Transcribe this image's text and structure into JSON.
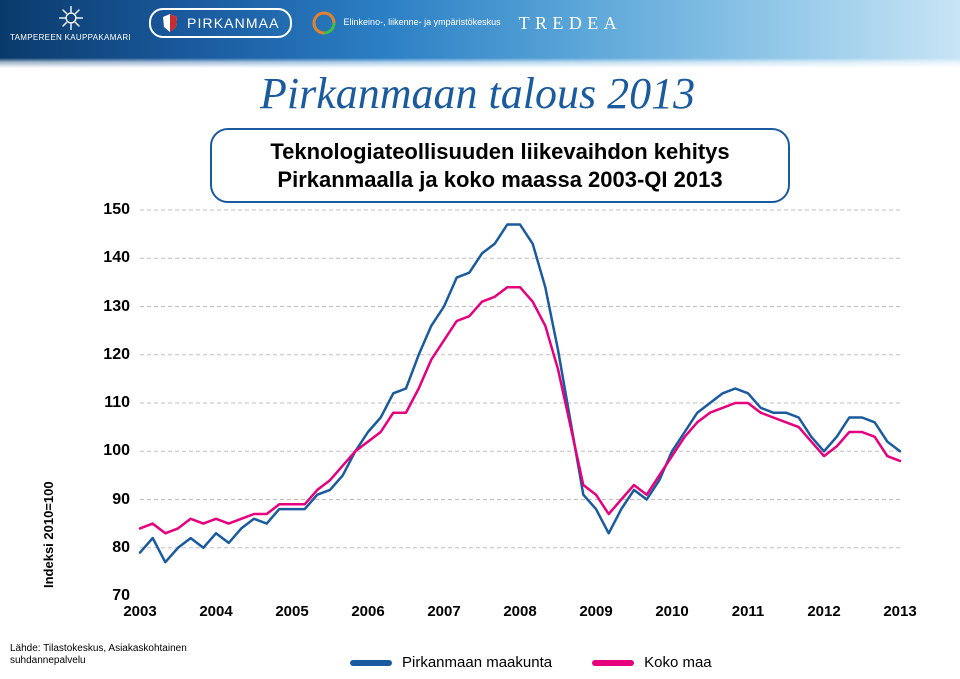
{
  "header": {
    "logos": {
      "kauppakamari_label": "TAMPEREEN\nKAUPPAKAMARI",
      "pirkanmaa_label": "PIRKANMAA",
      "ely_label": "Elinkeino-, liikenne- ja\nympäristökeskus",
      "tredea_label": "TREDEA"
    }
  },
  "title": "Pirkanmaan talous 2013",
  "subtitle": "Teknologiateollisuuden liikevaihdon kehitys Pirkanmaalla ja koko maassa 2003-QI 2013",
  "chart": {
    "type": "line",
    "y_axis_label": "Indeksi 2010=100",
    "ylim": [
      70,
      150
    ],
    "ytick_step": 10,
    "yticks": [
      70,
      80,
      90,
      100,
      110,
      120,
      130,
      140,
      150
    ],
    "xticks": [
      "2003",
      "2004",
      "2005",
      "2006",
      "2007",
      "2008",
      "2009",
      "2010",
      "2011",
      "2012",
      "2013"
    ],
    "grid_color": "#bfbfbf",
    "grid_dash": "4 3",
    "grid_width": 1,
    "background_color": "#ffffff",
    "line_width": 2.5,
    "series": {
      "pirkanmaa": {
        "label": "Pirkanmaan maakunta",
        "color": "#1a5a9e",
        "data": [
          79,
          82,
          77,
          80,
          82,
          80,
          83,
          81,
          84,
          86,
          85,
          88,
          88,
          88,
          91,
          92,
          95,
          100,
          104,
          107,
          112,
          113,
          120,
          126,
          130,
          136,
          137,
          141,
          143,
          147,
          147,
          143,
          134,
          121,
          106,
          91,
          88,
          83,
          88,
          92,
          90,
          94,
          100,
          104,
          108,
          110,
          112,
          113,
          112,
          109,
          108,
          108,
          107,
          103,
          100,
          103,
          107,
          107,
          106,
          102,
          100
        ]
      },
      "kokomaa": {
        "label": "Koko maa",
        "color": "#e6007e",
        "data": [
          84,
          85,
          83,
          84,
          86,
          85,
          86,
          85,
          86,
          87,
          87,
          89,
          89,
          89,
          92,
          94,
          97,
          100,
          102,
          104,
          108,
          108,
          113,
          119,
          123,
          127,
          128,
          131,
          132,
          134,
          134,
          131,
          126,
          117,
          105,
          93,
          91,
          87,
          90,
          93,
          91,
          95,
          99,
          103,
          106,
          108,
          109,
          110,
          110,
          108,
          107,
          106,
          105,
          102,
          99,
          101,
          104,
          104,
          103,
          99,
          98
        ]
      }
    },
    "x_points": 61
  },
  "legend": {
    "items": [
      {
        "label": "Pirkanmaan maakunta",
        "color": "#1a5a9e"
      },
      {
        "label": "Koko maa",
        "color": "#e6007e"
      }
    ]
  },
  "footer": {
    "source_line1": "Lähde: Tilastokeskus, Asiakaskohtainen",
    "source_line2": "suhdannepalvelu"
  }
}
